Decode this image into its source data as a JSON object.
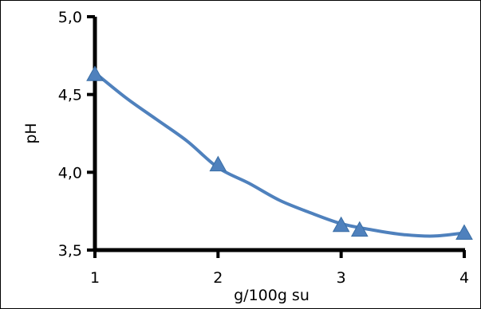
{
  "chart_data": {
    "type": "scatter",
    "title": "",
    "xlabel": "g/100g su",
    "ylabel": "pH",
    "xlim": [
      1,
      4
    ],
    "ylim": [
      3.5,
      5.0
    ],
    "x_ticks": [
      1,
      2,
      3,
      4
    ],
    "x_tick_labels": [
      "1",
      "2",
      "3",
      "4"
    ],
    "y_ticks": [
      3.5,
      4.0,
      4.5,
      5.0
    ],
    "y_tick_labels": [
      "3,5",
      "4,0",
      "4,5",
      "5,0"
    ],
    "grid": false,
    "legend": "none",
    "series": [
      {
        "marker": "triangle",
        "color": "#4f81bd",
        "points": [
          {
            "x": 1.0,
            "y": 4.63
          },
          {
            "x": 2.0,
            "y": 4.05
          },
          {
            "x": 3.0,
            "y": 3.66
          },
          {
            "x": 3.15,
            "y": 3.63
          },
          {
            "x": 4.0,
            "y": 3.61
          }
        ]
      }
    ],
    "trendline": {
      "type": "polynomial",
      "color": "#4f81bd",
      "points": [
        {
          "x": 1.0,
          "y": 4.64
        },
        {
          "x": 1.25,
          "y": 4.48
        },
        {
          "x": 1.5,
          "y": 4.34
        },
        {
          "x": 1.75,
          "y": 4.2
        },
        {
          "x": 2.0,
          "y": 4.03
        },
        {
          "x": 2.25,
          "y": 3.93
        },
        {
          "x": 2.5,
          "y": 3.82
        },
        {
          "x": 2.75,
          "y": 3.74
        },
        {
          "x": 3.0,
          "y": 3.67
        },
        {
          "x": 3.25,
          "y": 3.63
        },
        {
          "x": 3.5,
          "y": 3.6
        },
        {
          "x": 3.75,
          "y": 3.59
        },
        {
          "x": 4.0,
          "y": 3.61
        }
      ]
    }
  }
}
